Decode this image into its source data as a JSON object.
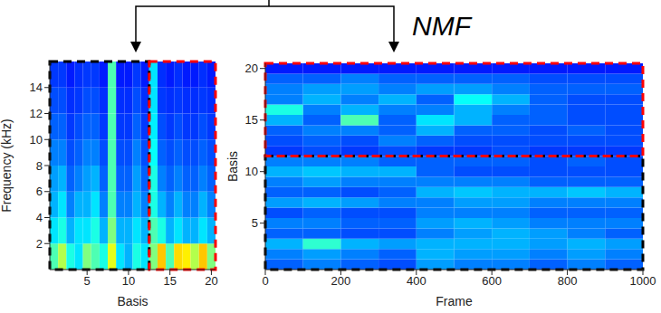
{
  "label": "NMF",
  "chart_data": [
    {
      "type": "heatmap",
      "xlabel": "Basis",
      "ylabel": "Frequency (kHz)",
      "xlim": [
        0.5,
        20.5
      ],
      "ylim": [
        0,
        16
      ],
      "xticks": [
        5,
        10,
        15,
        20
      ],
      "yticks": [
        2,
        4,
        6,
        8,
        10,
        12,
        14
      ],
      "x": [
        1,
        2,
        3,
        4,
        5,
        6,
        7,
        8,
        9,
        10,
        11,
        12,
        13,
        14,
        15,
        16,
        17,
        18,
        19,
        20
      ],
      "y_bins": [
        0,
        2,
        4,
        6,
        8,
        10,
        12,
        14,
        16
      ],
      "clim": [
        0,
        1
      ],
      "cells": [
        [
          0.45,
          0.55,
          0.4,
          0.35,
          0.5,
          0.45,
          0.4,
          0.6,
          0.35,
          0.3,
          0.4,
          0.35,
          0.5,
          0.68,
          0.45,
          0.66,
          0.64,
          0.55,
          0.68,
          0.5
        ],
        [
          0.35,
          0.4,
          0.3,
          0.35,
          0.35,
          0.4,
          0.3,
          0.5,
          0.3,
          0.3,
          0.35,
          0.3,
          0.45,
          0.4,
          0.3,
          0.35,
          0.3,
          0.3,
          0.35,
          0.3
        ],
        [
          0.3,
          0.35,
          0.25,
          0.3,
          0.3,
          0.35,
          0.25,
          0.45,
          0.25,
          0.25,
          0.3,
          0.25,
          0.4,
          0.3,
          0.25,
          0.3,
          0.25,
          0.25,
          0.3,
          0.25
        ],
        [
          0.28,
          0.3,
          0.22,
          0.25,
          0.28,
          0.3,
          0.22,
          0.45,
          0.22,
          0.22,
          0.28,
          0.22,
          0.4,
          0.25,
          0.22,
          0.25,
          0.22,
          0.22,
          0.25,
          0.22
        ],
        [
          0.25,
          0.25,
          0.2,
          0.22,
          0.25,
          0.25,
          0.2,
          0.45,
          0.2,
          0.2,
          0.25,
          0.2,
          0.38,
          0.22,
          0.2,
          0.22,
          0.2,
          0.2,
          0.22,
          0.2
        ],
        [
          0.22,
          0.22,
          0.18,
          0.2,
          0.22,
          0.22,
          0.18,
          0.45,
          0.18,
          0.18,
          0.22,
          0.18,
          0.36,
          0.2,
          0.18,
          0.2,
          0.18,
          0.18,
          0.2,
          0.18
        ],
        [
          0.2,
          0.2,
          0.17,
          0.18,
          0.2,
          0.2,
          0.17,
          0.45,
          0.17,
          0.17,
          0.2,
          0.17,
          0.35,
          0.18,
          0.17,
          0.18,
          0.17,
          0.17,
          0.18,
          0.17
        ],
        [
          0.18,
          0.18,
          0.15,
          0.17,
          0.18,
          0.18,
          0.15,
          0.45,
          0.15,
          0.15,
          0.18,
          0.15,
          0.35,
          0.17,
          0.15,
          0.17,
          0.15,
          0.15,
          0.17,
          0.15
        ]
      ],
      "groups": [
        {
          "x": [
            0.5,
            12.5
          ],
          "color": "#000000"
        },
        {
          "x": [
            12.5,
            20.5
          ],
          "color": "#ff0000"
        }
      ]
    },
    {
      "type": "heatmap",
      "xlabel": "Frame",
      "ylabel": "Basis",
      "xlim": [
        0,
        1000
      ],
      "ylim": [
        0.5,
        20.5
      ],
      "xticks": [
        0,
        200,
        400,
        600,
        800,
        1000
      ],
      "yticks": [
        5,
        10,
        15,
        20
      ],
      "x_bins": [
        0,
        100,
        200,
        300,
        400,
        500,
        600,
        700,
        800,
        900,
        1000
      ],
      "y": [
        1,
        2,
        3,
        4,
        5,
        6,
        7,
        8,
        9,
        10,
        11,
        12,
        13,
        14,
        15,
        16,
        17,
        18,
        19,
        20
      ],
      "clim": [
        0,
        1
      ],
      "cells": [
        [
          0.22,
          0.25,
          0.22,
          0.2,
          0.28,
          0.25,
          0.25,
          0.22,
          0.25,
          0.22
        ],
        [
          0.25,
          0.28,
          0.25,
          0.22,
          0.3,
          0.28,
          0.28,
          0.25,
          0.28,
          0.25
        ],
        [
          0.3,
          0.42,
          0.3,
          0.28,
          0.3,
          0.3,
          0.3,
          0.28,
          0.3,
          0.28
        ],
        [
          0.22,
          0.22,
          0.2,
          0.2,
          0.25,
          0.28,
          0.3,
          0.28,
          0.25,
          0.22
        ],
        [
          0.25,
          0.25,
          0.22,
          0.22,
          0.28,
          0.3,
          0.28,
          0.25,
          0.25,
          0.25
        ],
        [
          0.2,
          0.22,
          0.2,
          0.2,
          0.25,
          0.25,
          0.25,
          0.22,
          0.22,
          0.22
        ],
        [
          0.28,
          0.3,
          0.28,
          0.25,
          0.25,
          0.28,
          0.28,
          0.25,
          0.25,
          0.25
        ],
        [
          0.22,
          0.22,
          0.2,
          0.22,
          0.3,
          0.32,
          0.3,
          0.3,
          0.32,
          0.3
        ],
        [
          0.25,
          0.28,
          0.25,
          0.25,
          0.25,
          0.25,
          0.25,
          0.22,
          0.22,
          0.22
        ],
        [
          0.3,
          0.32,
          0.3,
          0.3,
          0.22,
          0.2,
          0.2,
          0.2,
          0.2,
          0.2
        ],
        [
          0.25,
          0.25,
          0.25,
          0.22,
          0.22,
          0.22,
          0.22,
          0.2,
          0.22,
          0.2
        ],
        [
          0.18,
          0.2,
          0.18,
          0.2,
          0.18,
          0.18,
          0.2,
          0.18,
          0.18,
          0.18
        ],
        [
          0.2,
          0.22,
          0.2,
          0.25,
          0.22,
          0.2,
          0.2,
          0.2,
          0.2,
          0.2
        ],
        [
          0.22,
          0.25,
          0.25,
          0.22,
          0.3,
          0.22,
          0.22,
          0.2,
          0.22,
          0.2
        ],
        [
          0.3,
          0.22,
          0.45,
          0.22,
          0.35,
          0.3,
          0.22,
          0.22,
          0.2,
          0.2
        ],
        [
          0.4,
          0.25,
          0.3,
          0.25,
          0.25,
          0.3,
          0.25,
          0.22,
          0.2,
          0.2
        ],
        [
          0.25,
          0.3,
          0.25,
          0.3,
          0.22,
          0.38,
          0.3,
          0.22,
          0.2,
          0.2
        ],
        [
          0.25,
          0.28,
          0.28,
          0.25,
          0.28,
          0.28,
          0.25,
          0.22,
          0.22,
          0.22
        ],
        [
          0.22,
          0.22,
          0.25,
          0.22,
          0.22,
          0.22,
          0.22,
          0.2,
          0.2,
          0.2
        ],
        [
          0.15,
          0.15,
          0.15,
          0.15,
          0.15,
          0.15,
          0.15,
          0.15,
          0.15,
          0.15
        ]
      ],
      "groups": [
        {
          "y": [
            0.5,
            11.5
          ],
          "color": "#000000"
        },
        {
          "y": [
            11.5,
            20.5
          ],
          "color": "#ff0000"
        }
      ]
    }
  ]
}
